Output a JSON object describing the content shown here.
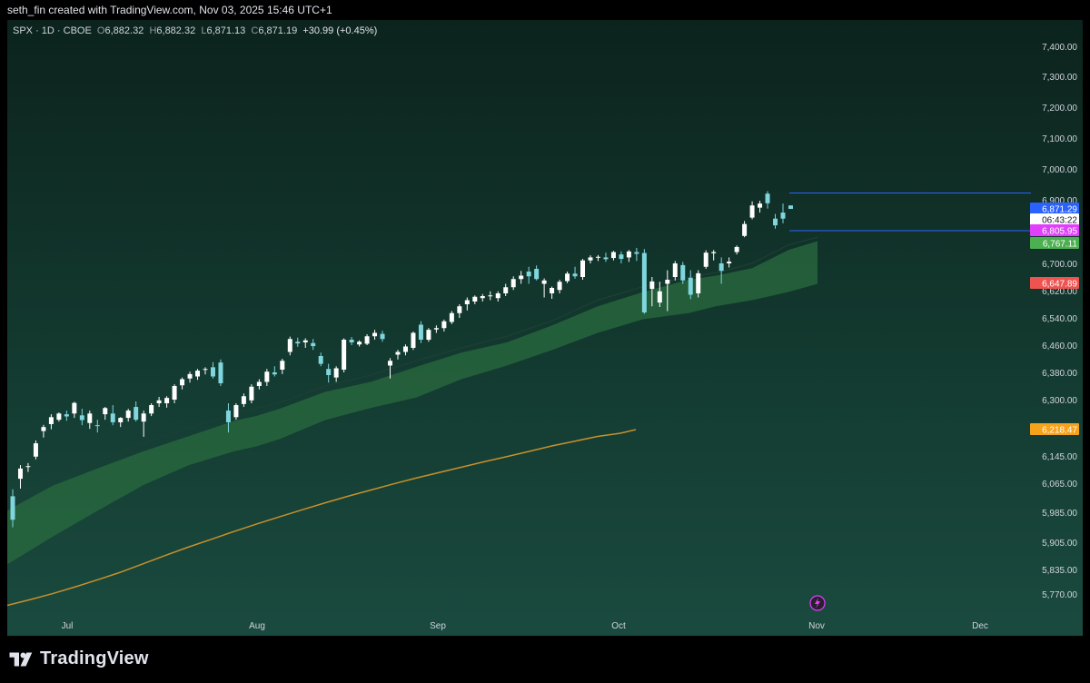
{
  "header": {
    "attribution": "seth_fin created with TradingView.com, Nov 03, 2025 15:46 UTC+1"
  },
  "legend": {
    "symbol": "SPX · 1D · CBOE",
    "o_label": "O",
    "o_value": "6,882.32",
    "h_label": "H",
    "h_value": "6,882.32",
    "l_label": "L",
    "l_value": "6,871.13",
    "c_label": "C",
    "c_value": "6,871.19",
    "change": "+30.99 (+0.45%)"
  },
  "footer": {
    "brand": "TradingView"
  },
  "colors": {
    "up": "#ffffff",
    "down": "#7fd6dd",
    "band": "#2a6b3f",
    "ma200": "#c8902c",
    "range_line": "#2962ff",
    "label_blue": "#2962ff",
    "label_magenta": "#e040fb",
    "label_green": "#4caf50",
    "label_red": "#ef5350",
    "label_orange": "#f7a21b"
  },
  "chart_data": {
    "type": "candlestick",
    "x_axis": {
      "tick_labels": [
        "Jul",
        "Aug",
        "Sep",
        "Oct",
        "Nov",
        "Dec"
      ]
    },
    "y_axis": {
      "tick_labels": [
        "7,400.00",
        "7,300.00",
        "7,200.00",
        "7,100.00",
        "7,000.00",
        "6,900.00",
        "6,700.00",
        "6,620.00",
        "6,540.00",
        "6,460.00",
        "6,380.00",
        "6,300.00",
        "6,145.00",
        "6,065.00",
        "5,985.00",
        "5,905.00",
        "5,835.00",
        "5,770.00"
      ]
    },
    "price_labels": [
      {
        "value": "6,871.29",
        "color": "label_blue"
      },
      {
        "value": "06:43:22",
        "color": "white"
      },
      {
        "value": "6,805.95",
        "color": "label_magenta"
      },
      {
        "value": "6,767.11",
        "color": "label_green"
      },
      {
        "value": "6,647.89",
        "color": "label_red"
      },
      {
        "value": "6,218.47",
        "color": "label_orange"
      }
    ],
    "range_lines": [
      6922,
      6806
    ],
    "ohlc": [
      [
        6029,
        6048,
        5945,
        5965
      ],
      [
        6078,
        6118,
        6050,
        6108
      ],
      [
        6114,
        6124,
        6098,
        6115
      ],
      [
        6143,
        6188,
        6135,
        6180
      ],
      [
        6214,
        6231,
        6196,
        6225
      ],
      [
        6233,
        6260,
        6219,
        6252
      ],
      [
        6245,
        6265,
        6240,
        6262
      ],
      [
        6260,
        6270,
        6242,
        6254
      ],
      [
        6262,
        6294,
        6250,
        6291
      ],
      [
        6257,
        6275,
        6230,
        6244
      ],
      [
        6236,
        6270,
        6220,
        6262
      ],
      [
        6230,
        6245,
        6210,
        6228
      ],
      [
        6260,
        6280,
        6245,
        6277
      ],
      [
        6262,
        6285,
        6230,
        6238
      ],
      [
        6238,
        6252,
        6225,
        6250
      ],
      [
        6250,
        6275,
        6240,
        6270
      ],
      [
        6280,
        6295,
        6240,
        6245
      ],
      [
        6240,
        6270,
        6198,
        6262
      ],
      [
        6262,
        6290,
        6255,
        6285
      ],
      [
        6290,
        6308,
        6280,
        6298
      ],
      [
        6290,
        6310,
        6278,
        6305
      ],
      [
        6300,
        6345,
        6290,
        6340
      ],
      [
        6342,
        6365,
        6330,
        6360
      ],
      [
        6362,
        6382,
        6350,
        6375
      ],
      [
        6368,
        6390,
        6358,
        6385
      ],
      [
        6390,
        6395,
        6374,
        6390
      ],
      [
        6395,
        6410,
        6362,
        6368
      ],
      [
        6409,
        6418,
        6340,
        6348
      ],
      [
        6270,
        6290,
        6210,
        6238
      ],
      [
        6252,
        6290,
        6245,
        6285
      ],
      [
        6288,
        6318,
        6280,
        6310
      ],
      [
        6298,
        6345,
        6290,
        6338
      ],
      [
        6340,
        6360,
        6330,
        6352
      ],
      [
        6352,
        6390,
        6340,
        6382
      ],
      [
        6380,
        6398,
        6368,
        6374
      ],
      [
        6388,
        6420,
        6375,
        6414
      ],
      [
        6440,
        6485,
        6430,
        6478
      ],
      [
        6470,
        6482,
        6455,
        6465
      ],
      [
        6468,
        6480,
        6452,
        6474
      ],
      [
        6466,
        6478,
        6446,
        6457
      ],
      [
        6428,
        6438,
        6398,
        6405
      ],
      [
        6390,
        6405,
        6350,
        6372
      ],
      [
        6365,
        6398,
        6352,
        6392
      ],
      [
        6388,
        6480,
        6380,
        6476
      ],
      [
        6476,
        6484,
        6460,
        6468
      ],
      [
        6462,
        6474,
        6456,
        6470
      ],
      [
        6464,
        6492,
        6460,
        6486
      ],
      [
        6486,
        6505,
        6476,
        6496
      ],
      [
        6493,
        6502,
        6470,
        6478
      ],
      [
        6400,
        6422,
        6362,
        6414
      ],
      [
        6432,
        6446,
        6418,
        6440
      ],
      [
        6440,
        6462,
        6430,
        6456
      ],
      [
        6452,
        6500,
        6446,
        6496
      ],
      [
        6520,
        6530,
        6466,
        6476
      ],
      [
        6476,
        6510,
        6470,
        6505
      ],
      [
        6506,
        6518,
        6496,
        6510
      ],
      [
        6510,
        6535,
        6500,
        6530
      ],
      [
        6528,
        6560,
        6522,
        6554
      ],
      [
        6554,
        6580,
        6540,
        6574
      ],
      [
        6580,
        6600,
        6562,
        6592
      ],
      [
        6588,
        6606,
        6580,
        6602
      ],
      [
        6598,
        6610,
        6588,
        6604
      ],
      [
        6605,
        6618,
        6592,
        6606
      ],
      [
        6598,
        6618,
        6588,
        6612
      ],
      [
        6612,
        6640,
        6604,
        6630
      ],
      [
        6630,
        6662,
        6622,
        6654
      ],
      [
        6654,
        6678,
        6640,
        6664
      ],
      [
        6676,
        6690,
        6640,
        6662
      ],
      [
        6684,
        6694,
        6650,
        6654
      ],
      [
        6640,
        6656,
        6600,
        6650
      ],
      [
        6612,
        6632,
        6596,
        6628
      ],
      [
        6622,
        6652,
        6612,
        6646
      ],
      [
        6648,
        6676,
        6642,
        6670
      ],
      [
        6670,
        6690,
        6655,
        6662
      ],
      [
        6660,
        6715,
        6652,
        6710
      ],
      [
        6710,
        6727,
        6700,
        6720
      ],
      [
        6720,
        6728,
        6708,
        6722
      ],
      [
        6720,
        6736,
        6705,
        6714
      ],
      [
        6718,
        6742,
        6710,
        6738
      ],
      [
        6730,
        6740,
        6700,
        6715
      ],
      [
        6720,
        6745,
        6705,
        6740
      ],
      [
        6738,
        6752,
        6708,
        6732
      ],
      [
        6735,
        6748,
        6552,
        6556
      ],
      [
        6625,
        6660,
        6574,
        6647
      ],
      [
        6585,
        6646,
        6572,
        6618
      ],
      [
        6640,
        6680,
        6560,
        6652
      ],
      [
        6660,
        6708,
        6650,
        6700
      ],
      [
        6695,
        6705,
        6640,
        6650
      ],
      [
        6658,
        6680,
        6595,
        6608
      ],
      [
        6612,
        6680,
        6600,
        6671
      ],
      [
        6690,
        6744,
        6684,
        6736
      ],
      [
        6734,
        6745,
        6710,
        6738
      ],
      [
        6700,
        6720,
        6640,
        6678
      ],
      [
        6700,
        6720,
        6688,
        6706
      ],
      [
        6738,
        6760,
        6730,
        6755
      ],
      [
        6790,
        6835,
        6786,
        6826
      ],
      [
        6845,
        6895,
        6840,
        6882
      ],
      [
        6875,
        6897,
        6860,
        6888
      ],
      [
        6920,
        6928,
        6872,
        6889
      ],
      [
        6842,
        6856,
        6812,
        6822
      ],
      [
        6860,
        6888,
        6828,
        6842
      ],
      [
        6882,
        6882,
        6871,
        6871
      ]
    ],
    "ma200": [
      [
        0,
        5740
      ],
      [
        25,
        5755
      ],
      [
        50,
        5771
      ],
      [
        75,
        5789
      ],
      [
        100,
        5808
      ],
      [
        125,
        5828
      ],
      [
        150,
        5850
      ],
      [
        175,
        5872
      ],
      [
        200,
        5893
      ],
      [
        225,
        5913
      ],
      [
        250,
        5934
      ],
      [
        275,
        5954
      ],
      [
        300,
        5973
      ],
      [
        325,
        5992
      ],
      [
        350,
        6011
      ],
      [
        375,
        6029
      ],
      [
        400,
        6046
      ],
      [
        425,
        6063
      ],
      [
        450,
        6080
      ],
      [
        475,
        6096
      ],
      [
        500,
        6112
      ],
      [
        525,
        6128
      ],
      [
        550,
        6143
      ],
      [
        575,
        6158
      ],
      [
        600,
        6173
      ],
      [
        625,
        6186
      ],
      [
        650,
        6199
      ],
      [
        675,
        6208
      ],
      [
        692,
        6218
      ]
    ],
    "band_upper": [
      [
        0,
        5990
      ],
      [
        50,
        6058
      ],
      [
        100,
        6109
      ],
      [
        150,
        6158
      ],
      [
        200,
        6200
      ],
      [
        250,
        6242
      ],
      [
        275,
        6256
      ],
      [
        300,
        6275
      ],
      [
        350,
        6323
      ],
      [
        400,
        6352
      ],
      [
        450,
        6396
      ],
      [
        500,
        6438
      ],
      [
        550,
        6468
      ],
      [
        600,
        6518
      ],
      [
        650,
        6574
      ],
      [
        700,
        6616
      ],
      [
        750,
        6652
      ],
      [
        780,
        6664
      ],
      [
        820,
        6686
      ],
      [
        860,
        6745
      ],
      [
        892,
        6774
      ]
    ],
    "band_lower": [
      [
        0,
        5848
      ],
      [
        50,
        5920
      ],
      [
        100,
        5990
      ],
      [
        150,
        6060
      ],
      [
        200,
        6118
      ],
      [
        250,
        6158
      ],
      [
        275,
        6172
      ],
      [
        300,
        6192
      ],
      [
        350,
        6244
      ],
      [
        400,
        6277
      ],
      [
        450,
        6306
      ],
      [
        500,
        6360
      ],
      [
        550,
        6400
      ],
      [
        600,
        6446
      ],
      [
        650,
        6496
      ],
      [
        700,
        6536
      ],
      [
        750,
        6554
      ],
      [
        780,
        6574
      ],
      [
        820,
        6592
      ],
      [
        860,
        6616
      ],
      [
        892,
        6640
      ]
    ],
    "band_mid": [
      [
        0,
        5990
      ],
      [
        50,
        6080
      ],
      [
        100,
        6130
      ],
      [
        150,
        6180
      ],
      [
        200,
        6222
      ],
      [
        250,
        6262
      ],
      [
        300,
        6292
      ],
      [
        350,
        6340
      ],
      [
        400,
        6372
      ],
      [
        450,
        6414
      ],
      [
        500,
        6452
      ],
      [
        550,
        6486
      ],
      [
        600,
        6532
      ],
      [
        650,
        6592
      ],
      [
        700,
        6632
      ],
      [
        750,
        6660
      ],
      [
        780,
        6672
      ],
      [
        820,
        6700
      ],
      [
        860,
        6762
      ],
      [
        892,
        6786
      ]
    ]
  }
}
